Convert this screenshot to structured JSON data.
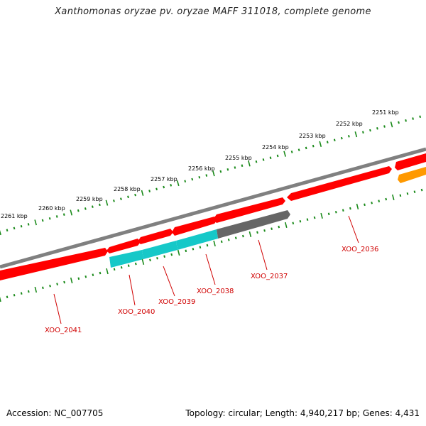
{
  "title": "Xanthomonas oryzae pv. oryzae MAFF 311018, complete genome",
  "footer": {
    "accession": "Accession: NC_007705",
    "stats": "Topology: circular; Length: 4,940,217 bp; Genes: 4,431"
  },
  "colors": {
    "backbone": "#808080",
    "tick": "#1a8a1a",
    "gene_red": "#ff0000",
    "gene_cyan": "#16c8c8",
    "gene_gray": "#666666",
    "gene_orange": "#ff9900",
    "label_red": "#d00000"
  },
  "scale": {
    "unit": "kbp",
    "labels": [
      "2251 kbp",
      "2252 kbp",
      "2253 kbp",
      "2254 kbp",
      "2255 kbp",
      "2256 kbp",
      "2257 kbp",
      "2258 kbp",
      "2259 kbp",
      "2260 kbp",
      "2261 kbp"
    ]
  },
  "genes": [
    {
      "name": "XOO_2036",
      "strand": "minus",
      "color": "red"
    },
    {
      "name": "XOO_2037",
      "strand": "minus",
      "color": "gray"
    },
    {
      "name": "XOO_2038",
      "strand": "minus",
      "color": "cyan"
    },
    {
      "name": "XOO_2039",
      "strand": "minus",
      "color": "cyan"
    },
    {
      "name": "XOO_2040",
      "strand": "minus",
      "color": "cyan"
    },
    {
      "name": "XOO_2041",
      "strand": "plus",
      "color": "red"
    }
  ]
}
